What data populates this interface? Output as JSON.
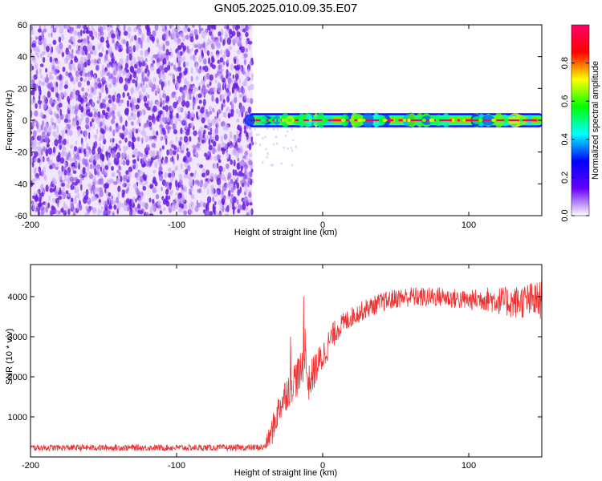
{
  "title": "GN05.2025.010.09.35.E07",
  "chart_data": [
    {
      "type": "heatmap",
      "xlabel": "Height of straight line (km)",
      "ylabel": "Frequency (Hz)",
      "xlim": [
        -200,
        150
      ],
      "ylim": [
        -60,
        60
      ],
      "xticks": [
        -200,
        -100,
        0,
        100
      ],
      "xtick_labels": [
        "-200",
        "-100",
        "0",
        "100"
      ],
      "yticks": [
        -60,
        -40,
        -20,
        0,
        20,
        40,
        60
      ],
      "ytick_labels": [
        "-60",
        "-40",
        "-20",
        "0",
        "20",
        "40",
        "60"
      ],
      "noise_region": {
        "x_from": -200,
        "x_to": -48,
        "y_from": -60,
        "y_to": 60,
        "amplitude": "0.0-0.2"
      },
      "signal_band": {
        "x_from": -50,
        "x_to": 150,
        "center_frequency": 0,
        "half_width": 4,
        "peak_amplitude": 0.95
      },
      "colorbar": {
        "label": "Normalized spectral amplitude",
        "range": [
          0,
          1
        ],
        "ticks": [
          0.0,
          0.2,
          0.4,
          0.6,
          0.8
        ],
        "tick_labels": [
          "0.0",
          "0.2",
          "0.4",
          "0.6",
          "0.8"
        ],
        "colors": [
          "#ffffff",
          "#6600ff",
          "#0000ff",
          "#00ffff",
          "#00ff00",
          "#ffff00",
          "#ff0000",
          "#ff0066"
        ]
      },
      "grid": false
    },
    {
      "type": "line",
      "xlabel": "Height of straight line (km)",
      "ylabel": "SNR (10 * v/v)",
      "xlim": [
        -200,
        150
      ],
      "ylim": [
        0,
        4800
      ],
      "xticks": [
        -200,
        -100,
        0,
        100
      ],
      "xtick_labels": [
        "-200",
        "-100",
        "0",
        "100"
      ],
      "yticks": [
        1000,
        2000,
        3000,
        4000
      ],
      "ytick_labels": [
        "1000",
        "2000",
        "3000",
        "4000"
      ],
      "color": "#ee3333",
      "x": [
        -200,
        -150,
        -100,
        -50,
        -40,
        -35,
        -30,
        -25,
        -20,
        -15,
        -12,
        -10,
        -5,
        0,
        5,
        10,
        20,
        30,
        40,
        50,
        60,
        70,
        80,
        90,
        100,
        110,
        120,
        130,
        140,
        150
      ],
      "y": [
        230,
        230,
        230,
        230,
        240,
        600,
        1200,
        1600,
        1900,
        2100,
        2500,
        1800,
        2200,
        2500,
        2900,
        3200,
        3500,
        3700,
        3850,
        3950,
        4000,
        3980,
        4000,
        3950,
        3900,
        3950,
        3900,
        3850,
        3900,
        3900
      ],
      "noise_amplitude": [
        80,
        80,
        80,
        80,
        90,
        350,
        400,
        450,
        500,
        500,
        500,
        450,
        450,
        400,
        350,
        300,
        250,
        250,
        250,
        250,
        250,
        250,
        250,
        250,
        250,
        300,
        350,
        400,
        450,
        500
      ],
      "spikes": [
        {
          "x": -13,
          "y": 4000
        },
        {
          "x": -12,
          "y": 3200
        },
        {
          "x": -22,
          "y": 3000
        }
      ],
      "grid": false
    }
  ]
}
